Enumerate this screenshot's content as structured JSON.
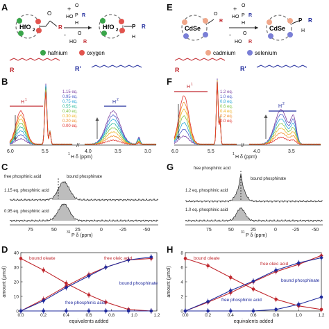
{
  "panels": {
    "A": {
      "label": "A",
      "core": "HfO",
      "core_sub": "2",
      "reagent_top": "+",
      "reagent_ho": "HO",
      "reagent_o": "O",
      "reagent_p": "P",
      "reagent_h": "H",
      "reagent_r": "R",
      "byproduct_minus": "-",
      "byproduct_ho": "HO",
      "byproduct_o": "O",
      "byproduct_r": "R",
      "ligand_o": "O",
      "ligand_r": "R",
      "product_p": "P",
      "product_h": "H",
      "product_r": "R",
      "legend": [
        {
          "name": "hafnium",
          "color": "#3aa54a"
        },
        {
          "name": "oxygen",
          "color": "#e2544e"
        }
      ],
      "r_label": "R",
      "rprime_label": "R'"
    },
    "E": {
      "label": "E",
      "core": "CdSe",
      "reagent_top": "+",
      "reagent_ho": "HO",
      "reagent_o": "O",
      "reagent_p": "P",
      "reagent_h": "H",
      "reagent_r": "R",
      "byproduct_minus": "-",
      "byproduct_ho": "HO",
      "byproduct_o": "O",
      "byproduct_r": "R",
      "ligand_o": "O",
      "ligand_r": "R",
      "product_p": "P",
      "product_h": "H",
      "product_r": "R",
      "legend": [
        {
          "name": "cadmium",
          "color": "#f0a78a"
        },
        {
          "name": "selenium",
          "color": "#7a7fd6"
        }
      ],
      "r_label": "R",
      "rprime_label": "R'"
    },
    "B": {
      "label": "B",
      "xlabel_main": "H δ (ppm)",
      "xlabel_sup": "1",
      "h1": "H",
      "h1_sup": "1",
      "h2": "H",
      "h2_sup": "2",
      "ticks": [
        "6.0",
        "5.5",
        "4.0",
        "3.5",
        "3.0"
      ],
      "series": [
        {
          "name": "1.15 eq.",
          "color": "#7b3fa0"
        },
        {
          "name": "0.95 eq.",
          "color": "#4b5dc8"
        },
        {
          "name": "0.75 eq.",
          "color": "#2aa7d8"
        },
        {
          "name": "0.55 eq.",
          "color": "#27b89a"
        },
        {
          "name": "0.40 eq.",
          "color": "#7cc242"
        },
        {
          "name": "0.30 eq.",
          "color": "#f0b323"
        },
        {
          "name": "0.20 eq.",
          "color": "#f08a24"
        },
        {
          "name": "0.00 eq.",
          "color": "#e0302a"
        }
      ]
    },
    "F": {
      "label": "F",
      "xlabel_main": "H δ (ppm)",
      "xlabel_sup": "1",
      "h1": "H",
      "h1_sup": "1",
      "h2": "H",
      "h2_sup": "2",
      "ticks": [
        "6.0",
        "5.5",
        "4.0",
        "3.5"
      ],
      "series": [
        {
          "name": "1.2 eq.",
          "color": "#7b3fa0"
        },
        {
          "name": "1.0 eq.",
          "color": "#4b5dc8"
        },
        {
          "name": "0.8 eq.",
          "color": "#2aa7d8"
        },
        {
          "name": "0.6 eq.",
          "color": "#7cc242"
        },
        {
          "name": "0.4 eq.",
          "color": "#f0b323"
        },
        {
          "name": "0.2 eq.",
          "color": "#f08a24"
        },
        {
          "name": "0.0 eq.",
          "color": "#e0302a"
        }
      ]
    },
    "C": {
      "label": "C",
      "xlabel_main": "P δ (ppm)",
      "xlabel_sup": "31",
      "ticks": [
        "75",
        "50",
        "25",
        "0",
        "-25",
        "-50"
      ],
      "free_label": "free phosphinic acid",
      "bound_label": "bound phosphinate",
      "trace_top": "1.15 eq. phosphinic acid",
      "trace_bottom": "0.95 eq. phosphinic acid"
    },
    "G": {
      "label": "G",
      "xlabel_main": "P δ (ppm)",
      "xlabel_sup": "31",
      "ticks": [
        "75",
        "50",
        "25",
        "0",
        "-25",
        "-50"
      ],
      "free_label": "free phosphinic acid",
      "bound_label": "bound phosphinate",
      "trace_top": "1.2 eq. phosphinic acid",
      "trace_bottom": "1.0 eq. phosphinic acid"
    }
  },
  "chart_data": [
    {
      "panel": "D",
      "type": "line",
      "xlabel": "equivalents added",
      "ylabel": "amount (µmol)",
      "xlim": [
        0,
        1.2
      ],
      "ylim": [
        0,
        40
      ],
      "xticks": [
        "0.0",
        "0.2",
        "0.4",
        "0.6",
        "0.8",
        "1.0",
        "1.2"
      ],
      "yticks": [
        "0",
        "10",
        "20",
        "30",
        "40"
      ],
      "series": [
        {
          "name": "bound oleate",
          "color": "#c0272d",
          "marker": "circle",
          "x": [
            0,
            0.2,
            0.4,
            0.6,
            0.75,
            0.95,
            1.15
          ],
          "y": [
            36,
            28,
            19,
            11,
            6,
            1,
            0
          ]
        },
        {
          "name": "free oleic acid",
          "color": "#c0272d",
          "marker": "diamond",
          "x": [
            0,
            0.2,
            0.4,
            0.6,
            0.75,
            0.95,
            1.15
          ],
          "y": [
            0,
            8,
            17,
            25,
            30,
            35,
            36
          ]
        },
        {
          "name": "bound phosphinate",
          "color": "#1f2a9c",
          "marker": "diamond",
          "x": [
            0,
            0.2,
            0.4,
            0.6,
            0.75,
            0.95,
            1.15
          ],
          "y": [
            0,
            7,
            16,
            24,
            30,
            35,
            37
          ]
        },
        {
          "name": "free phosphinic acid",
          "color": "#1f2a9c",
          "marker": "circle",
          "x": [
            0,
            0.2,
            0.4,
            0.6,
            0.75,
            0.95,
            1.15
          ],
          "y": [
            0,
            0,
            0,
            0,
            0,
            0,
            0
          ]
        }
      ]
    },
    {
      "panel": "H",
      "type": "line",
      "xlabel": "equivalents added",
      "ylabel": "amount (µmol)",
      "xlim": [
        0,
        1.2
      ],
      "ylim": [
        0,
        8
      ],
      "xticks": [
        "0.0",
        "0.2",
        "0.4",
        "0.6",
        "0.8",
        "1.0",
        "1.2"
      ],
      "yticks": [
        "0",
        "2",
        "4",
        "6",
        "8"
      ],
      "series": [
        {
          "name": "bound oleate",
          "color": "#c0272d",
          "marker": "circle",
          "x": [
            0,
            0.2,
            0.4,
            0.6,
            0.8,
            1.0,
            1.2
          ],
          "y": [
            7.2,
            6.2,
            4.6,
            3.0,
            1.6,
            0.7,
            0.2
          ]
        },
        {
          "name": "free oleic acid",
          "color": "#c0272d",
          "marker": "diamond",
          "x": [
            0,
            0.2,
            0.4,
            0.6,
            0.8,
            1.0,
            1.2
          ],
          "y": [
            0,
            1.2,
            2.5,
            4.0,
            5.4,
            6.4,
            7.6
          ]
        },
        {
          "name": "bound phosphinate",
          "color": "#1f2a9c",
          "marker": "diamond",
          "x": [
            0,
            0.2,
            0.4,
            0.6,
            0.8,
            1.0,
            1.2
          ],
          "y": [
            0,
            1.3,
            2.8,
            4.1,
            5.6,
            6.6,
            7.3
          ]
        },
        {
          "name": "free phosphinic acid",
          "color": "#1f2a9c",
          "marker": "circle",
          "x": [
            0,
            0.2,
            0.4,
            0.6,
            0.8,
            1.0,
            1.2
          ],
          "y": [
            0,
            0,
            0,
            0,
            0.2,
            0.9,
            1.9
          ]
        }
      ]
    }
  ]
}
